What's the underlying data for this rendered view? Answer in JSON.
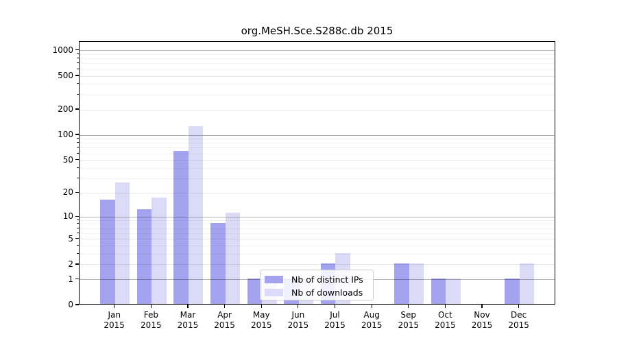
{
  "figure": {
    "background": "#ffffff"
  },
  "chart_data": {
    "type": "bar",
    "title": "org.MeSH.Sce.S288c.db 2015",
    "categories": [
      "Jan",
      "Feb",
      "Mar",
      "Apr",
      "May",
      "Jun",
      "Jul",
      "Aug",
      "Sep",
      "Oct",
      "Nov",
      "Dec"
    ],
    "category_year": "2015",
    "series": [
      {
        "name": "Nb of distinct IPs",
        "color": "#a3a3f0",
        "values": [
          16,
          12,
          63,
          8,
          1,
          1,
          2,
          0,
          2,
          1,
          0,
          1
        ]
      },
      {
        "name": "Nb of downloads",
        "color": "#dbdbf8",
        "values": [
          26,
          17,
          123,
          11,
          1,
          1,
          3,
          0,
          2,
          1,
          0,
          2
        ]
      }
    ],
    "xlabel": "",
    "ylabel": "",
    "y_scale": "log10(1+x)",
    "ylim": [
      0,
      1270
    ],
    "y_ticks_labeled": [
      0,
      1,
      2,
      5,
      10,
      20,
      50,
      100,
      200,
      500,
      1000
    ],
    "y_ticks_minor": [
      3,
      4,
      6,
      7,
      8,
      9,
      30,
      40,
      60,
      70,
      80,
      90,
      300,
      400,
      600,
      700,
      800,
      900
    ],
    "grid": true,
    "legend_position": "inside-bottom-center"
  },
  "legend": {
    "items": [
      {
        "label": "Nb of distinct IPs"
      },
      {
        "label": "Nb of downloads"
      }
    ]
  },
  "colors": {
    "grid_major": "rgba(0,0,0,0.30)",
    "grid_labeled": "rgba(0,0,0,0.09)",
    "grid_minor": "rgba(0,0,0,0.05)",
    "axis": "#000000",
    "bar_ips": "#a3a3f0",
    "bar_downloads": "#dbdbf8"
  }
}
